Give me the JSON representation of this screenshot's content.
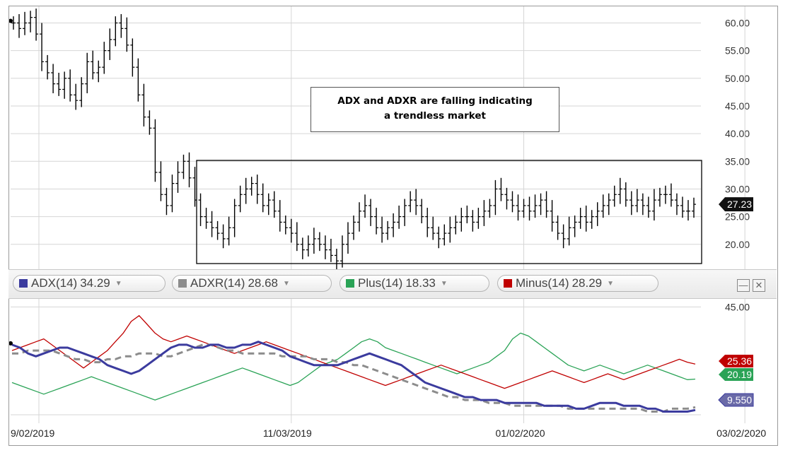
{
  "annotation": {
    "line1": "ADX and ADXR are falling indicating",
    "line2": "a trendless market"
  },
  "legend": [
    {
      "label": "ADX(14)",
      "value": "34.29",
      "color": "#3b3b9e"
    },
    {
      "label": "ADXR(14)",
      "value": "28.68",
      "color": "#8c8c8c"
    },
    {
      "label": "Plus(14)",
      "value": "18.33",
      "color": "#2aa356"
    },
    {
      "label": "Minus(14)",
      "value": "28.29",
      "color": "#c00000"
    }
  ],
  "icons": {
    "minimize": "minimize-icon",
    "close": "close-icon",
    "dropdown": "chevron-down-icon"
  },
  "chart_data": [
    {
      "type": "ohlc",
      "yticks": [
        20.0,
        25.0,
        30.0,
        35.0,
        40.0,
        45.0,
        50.0,
        55.0,
        60.0
      ],
      "ytick_labels": [
        "20.00",
        "25.00",
        "30.00",
        "35.00",
        "40.00",
        "45.00",
        "50.00",
        "55.00",
        "60.00"
      ],
      "ylim": [
        15.5,
        63
      ],
      "last_price_label": "27.23",
      "last_price": 27.23,
      "close": [
        60,
        59,
        60,
        61,
        58,
        53,
        51,
        49,
        48,
        50,
        47,
        46,
        49,
        53,
        51,
        52,
        55,
        57,
        60,
        59,
        56,
        52,
        47,
        43,
        41,
        33,
        29,
        27,
        31,
        33,
        35,
        32,
        28,
        25,
        24,
        23,
        22,
        21,
        23,
        27,
        29,
        30,
        31,
        29,
        27,
        28,
        26,
        24,
        23,
        22,
        20,
        19,
        20,
        21,
        20,
        19,
        18,
        17,
        20,
        22,
        24,
        26,
        27,
        25,
        23,
        22,
        23,
        24,
        25,
        27,
        28,
        27,
        25,
        23,
        22,
        21,
        22,
        23,
        24,
        25,
        25,
        24,
        25,
        26,
        27,
        30,
        29,
        28,
        27,
        26,
        27,
        26,
        27,
        28,
        26,
        24,
        22,
        21,
        23,
        24,
        25,
        24,
        25,
        26,
        27,
        28,
        29,
        30,
        28,
        27,
        28,
        27,
        26,
        28,
        29,
        29,
        28,
        27,
        26,
        26,
        27.23
      ],
      "xtick_labels": [
        "9/02/2019",
        "11/03/2019",
        "01/02/2020",
        "03/02/2020"
      ],
      "xtick_index": [
        0,
        49,
        90,
        129
      ]
    },
    {
      "type": "line",
      "yticks": [
        45.0
      ],
      "ytick_labels": [
        "45.00"
      ],
      "ylim": [
        5,
        48
      ],
      "series": [
        {
          "name": "ADX(14)",
          "color": "#3b3b9e",
          "label": "9.550",
          "values": [
            32,
            31,
            29,
            28,
            29,
            30,
            31,
            31,
            30,
            29,
            28,
            27,
            25,
            24,
            23,
            22,
            23,
            25,
            27,
            29,
            31,
            32,
            32,
            31,
            31,
            32,
            32,
            31,
            31,
            32,
            32,
            33,
            32,
            31,
            30,
            28,
            27,
            26,
            25,
            25,
            25,
            25,
            26,
            27,
            28,
            29,
            28,
            27,
            26,
            25,
            23,
            21,
            19,
            18,
            17,
            16,
            15,
            14,
            14,
            13,
            13,
            13,
            12,
            12,
            12,
            12,
            12,
            11,
            11,
            11,
            11,
            10,
            10,
            11,
            12,
            12,
            12,
            11,
            11,
            11,
            10,
            10,
            9,
            9,
            9,
            9,
            9.55
          ]
        },
        {
          "name": "ADXR(14)",
          "color": "#8c8c8c",
          "label": "",
          "values": [
            29,
            29,
            30,
            30,
            30,
            30,
            29,
            28,
            27,
            27,
            26,
            26,
            27,
            27,
            28,
            28,
            29,
            29,
            29,
            28,
            28,
            29,
            30,
            31,
            32,
            32,
            31,
            30,
            30,
            29,
            29,
            29,
            29,
            29,
            28,
            28,
            28,
            28,
            27,
            27,
            27,
            26,
            26,
            25,
            25,
            24,
            23,
            22,
            21,
            20,
            19,
            18,
            17,
            16,
            15,
            14,
            14,
            13,
            13,
            13,
            12,
            12,
            12,
            11,
            11,
            11,
            11,
            11,
            11,
            11,
            10,
            10,
            10,
            10,
            10,
            10,
            10,
            10,
            10,
            10,
            9,
            9,
            9,
            10,
            10,
            10,
            10.5
          ]
        },
        {
          "name": "Plus(14)",
          "color": "#2aa356",
          "label": "20.19",
          "values": [
            19,
            18,
            17,
            16,
            15,
            16,
            17,
            18,
            19,
            20,
            21,
            20,
            19,
            18,
            17,
            16,
            15,
            14,
            13,
            14,
            15,
            16,
            17,
            18,
            19,
            20,
            21,
            22,
            23,
            24,
            23,
            22,
            21,
            20,
            19,
            18,
            19,
            21,
            23,
            25,
            26,
            27,
            29,
            31,
            33,
            34,
            33,
            31,
            30,
            29,
            28,
            27,
            26,
            25,
            24,
            23,
            22,
            23,
            24,
            25,
            26,
            28,
            30,
            34,
            36,
            35,
            33,
            31,
            29,
            27,
            25,
            24,
            23,
            24,
            25,
            24,
            23,
            22,
            23,
            24,
            25,
            24,
            23,
            22,
            21,
            20,
            20.19
          ]
        },
        {
          "name": "Minus(14)",
          "color": "#c00000",
          "label": "25.36",
          "values": [
            30,
            31,
            32,
            33,
            34,
            32,
            30,
            28,
            26,
            24,
            26,
            28,
            30,
            33,
            36,
            40,
            42,
            39,
            36,
            34,
            33,
            34,
            35,
            34,
            33,
            32,
            31,
            30,
            29,
            30,
            31,
            32,
            33,
            32,
            31,
            30,
            29,
            28,
            27,
            26,
            25,
            24,
            23,
            22,
            21,
            20,
            19,
            18,
            19,
            20,
            21,
            22,
            23,
            24,
            25,
            24,
            23,
            22,
            21,
            20,
            19,
            18,
            17,
            18,
            19,
            20,
            21,
            22,
            23,
            22,
            21,
            20,
            19,
            20,
            21,
            22,
            21,
            20,
            21,
            22,
            23,
            24,
            25,
            26,
            27,
            26,
            25.36
          ]
        }
      ]
    }
  ]
}
